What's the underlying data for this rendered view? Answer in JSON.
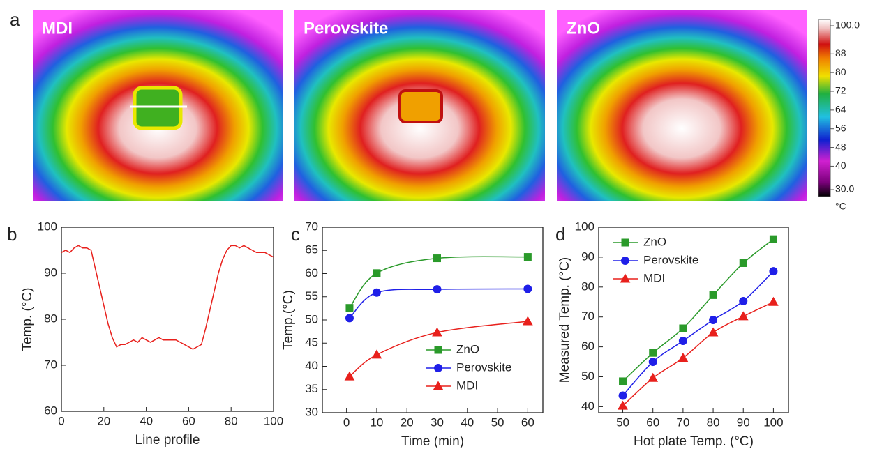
{
  "panel_labels": [
    "a",
    "b",
    "c",
    "d"
  ],
  "thermal_images": {
    "titles": [
      "MDI",
      "Perovskite",
      "ZnO"
    ],
    "colorbar": {
      "lim": [
        30,
        100
      ],
      "unit": "°C",
      "ticks": [
        {
          "value": 100,
          "label": "100.0"
        },
        88,
        80,
        72,
        64,
        56,
        48,
        40,
        {
          "value": 30,
          "label": "30.0"
        }
      ]
    }
  },
  "chart_data": [
    {
      "type": "line",
      "x_label": "Line profile",
      "y_label": "Temp. (°C)",
      "color": "#e8201c",
      "smooth": false,
      "x": [
        0,
        2,
        4,
        6,
        8,
        10,
        12,
        14,
        16,
        18,
        20,
        22,
        24,
        26,
        28,
        30,
        32,
        34,
        36,
        38,
        40,
        42,
        44,
        46,
        48,
        50,
        52,
        54,
        56,
        58,
        60,
        62,
        64,
        66,
        68,
        70,
        72,
        74,
        76,
        78,
        80,
        82,
        84,
        86,
        88,
        90,
        92,
        94,
        96,
        98,
        100
      ],
      "values": [
        94.5,
        95,
        94.5,
        95.5,
        96,
        95.5,
        95.5,
        95,
        91,
        87,
        83,
        79,
        76,
        74,
        74.5,
        74.5,
        75,
        75.5,
        75,
        76,
        75.5,
        75,
        75.5,
        76,
        75.5,
        75.5,
        75.5,
        75.5,
        75,
        74.5,
        74,
        73.5,
        74,
        74.5,
        78,
        82,
        86,
        90,
        93,
        95,
        96,
        96,
        95.5,
        96,
        95.5,
        95,
        94.5,
        94.5,
        94.5,
        94,
        93.5
      ],
      "xlim": [
        0,
        100
      ],
      "xticks": [
        0,
        20,
        40,
        60,
        80,
        100
      ],
      "ylim": [
        60,
        100
      ],
      "yticks": [
        60,
        70,
        80,
        90,
        100
      ]
    },
    {
      "type": "line",
      "x_label": "Time (min)",
      "y_label": "Temp.(°C)",
      "smooth": true,
      "legend": "lower right",
      "x": [
        1,
        10,
        30,
        60
      ],
      "series": [
        {
          "name": "ZnO",
          "color": "#2a9a2a",
          "marker": "square",
          "values": [
            52.6,
            60.1,
            63.3,
            63.6
          ]
        },
        {
          "name": "Perovskite",
          "color": "#1f1fe8",
          "marker": "circle",
          "values": [
            50.4,
            55.9,
            56.6,
            56.7
          ]
        },
        {
          "name": "MDI",
          "color": "#e8201c",
          "marker": "triangle",
          "values": [
            37.8,
            42.5,
            47.3,
            49.7
          ]
        }
      ],
      "xlim": [
        -8,
        65
      ],
      "xticks": [
        0,
        10,
        20,
        30,
        40,
        50,
        60
      ],
      "ylim": [
        30,
        70
      ],
      "yticks": [
        30,
        35,
        40,
        45,
        50,
        55,
        60,
        65,
        70
      ]
    },
    {
      "type": "line",
      "x_label": "Hot plate Temp. (°C)",
      "y_label": "Measured Temp. (°C)",
      "smooth": true,
      "legend": "upper left",
      "x": [
        50,
        60,
        70,
        80,
        90,
        100
      ],
      "series": [
        {
          "name": "ZnO",
          "color": "#2a9a2a",
          "marker": "square",
          "values": [
            48.5,
            58,
            66.2,
            77.3,
            88,
            96
          ]
        },
        {
          "name": "Perovskite",
          "color": "#1f1fe8",
          "marker": "circle",
          "values": [
            43.7,
            55,
            62,
            69,
            75.3,
            85.3
          ]
        },
        {
          "name": "MDI",
          "color": "#e8201c",
          "marker": "triangle",
          "values": [
            40.3,
            49.6,
            56.3,
            64.8,
            70.2,
            75
          ]
        }
      ],
      "xlim": [
        42,
        105
      ],
      "xticks": [
        50,
        60,
        70,
        80,
        90,
        100
      ],
      "ylim": [
        38,
        100
      ],
      "yticks": [
        40,
        50,
        60,
        70,
        80,
        90,
        100
      ]
    }
  ]
}
